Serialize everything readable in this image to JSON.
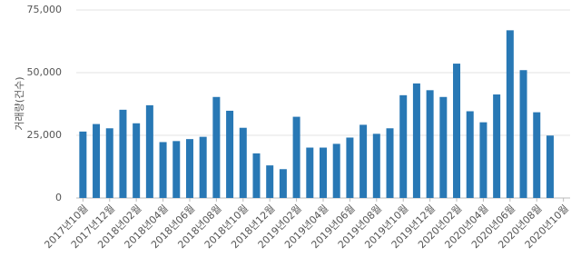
{
  "chart_data": {
    "type": "bar",
    "y_label": "거래량(건수)",
    "categories": [
      "2017년10월",
      null,
      "2017년12월",
      null,
      "2018년02월",
      null,
      "2018년04월",
      null,
      "2018년06월",
      null,
      "2018년08월",
      null,
      "2018년10월",
      null,
      "2018년12월",
      null,
      "2019년02월",
      null,
      "2019년04월",
      null,
      "2019년06월",
      null,
      "2019년08월",
      null,
      "2019년10월",
      null,
      "2019년12월",
      null,
      "2020년02월",
      null,
      "2020년04월",
      null,
      "2020년06월",
      null,
      "2020년08월",
      null,
      "2020년10월"
    ],
    "values": [
      26500,
      29500,
      27800,
      35200,
      29800,
      37000,
      22300,
      22700,
      23500,
      24400,
      40300,
      34800,
      28000,
      17800,
      13000,
      11500,
      32400,
      20100,
      20100,
      21600,
      24100,
      29200,
      25600,
      27800,
      41000,
      45700,
      43000,
      40300,
      53600,
      34600,
      30200,
      41300,
      66900,
      51000,
      34200,
      24900,
      null
    ],
    "color": "#2878b5",
    "ylim": [
      0,
      75000
    ],
    "yticks": [
      0,
      {
        "value": 25000,
        "label": "25,000"
      },
      {
        "value": 50000,
        "label": "50,000"
      },
      {
        "value": 75000,
        "label": "75,000"
      }
    ],
    "grid": true
  }
}
